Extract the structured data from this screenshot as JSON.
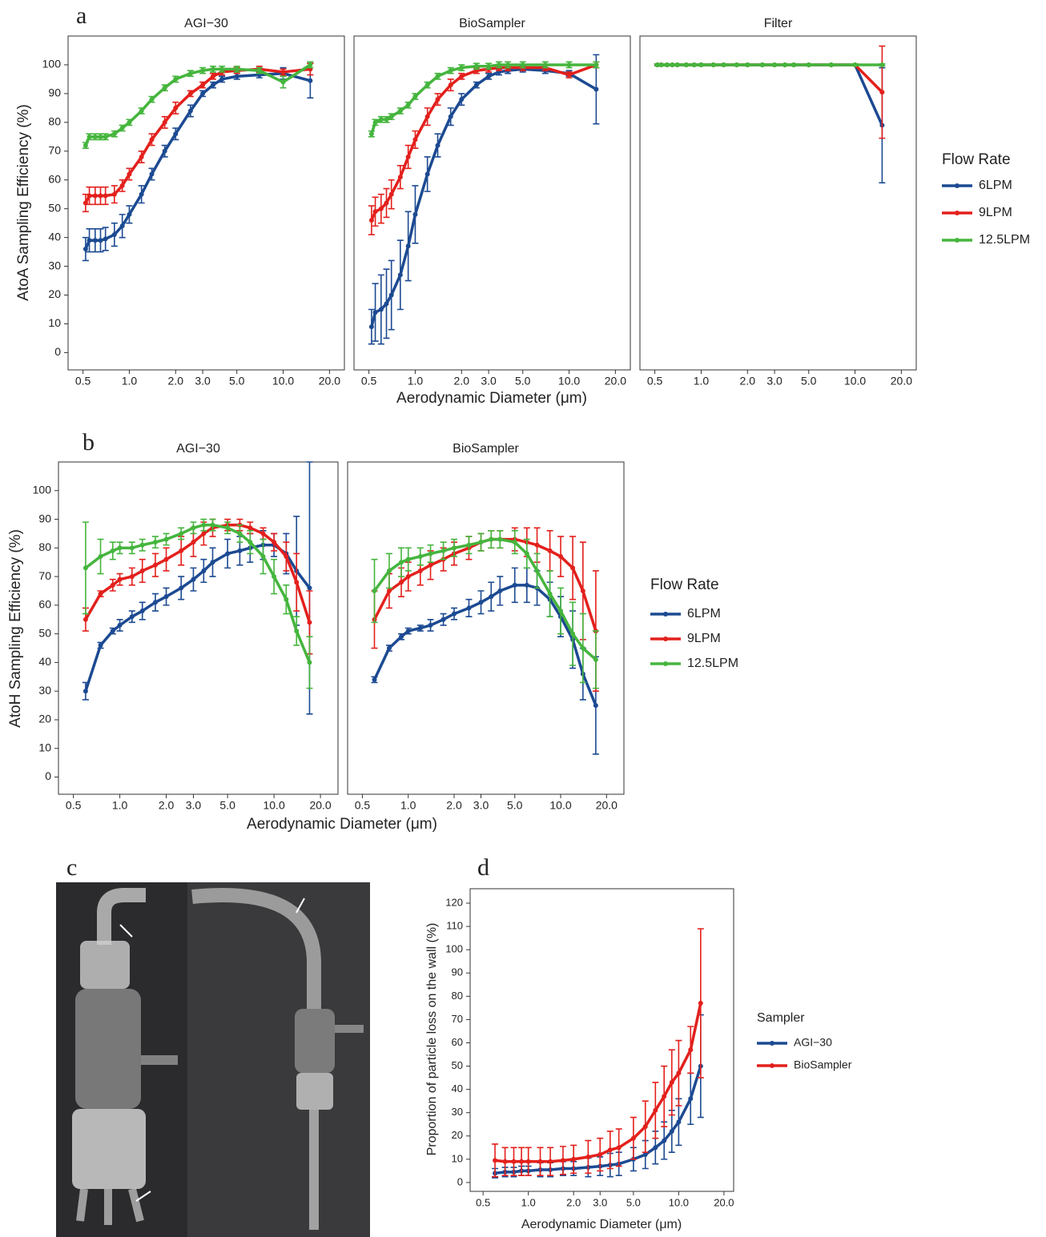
{
  "photo_panel": {
    "label": "c"
  },
  "chart_data": [
    {
      "type": "line",
      "panel_label": "a",
      "x_label": "Aerodynamic Diameter (μm)",
      "y_label": "AtoA Sampling Efficiency (%)",
      "legend_title": "Flow Rate",
      "x_log": true,
      "xlim": [
        0.4,
        25
      ],
      "xticks": [
        0.5,
        {
          "value": 1,
          "label": "1.0"
        },
        {
          "value": 2,
          "label": "2.0"
        },
        {
          "value": 3,
          "label": "3.0"
        },
        {
          "value": 5,
          "label": "5.0"
        },
        {
          "value": 10,
          "label": "10.0"
        },
        {
          "value": 20,
          "label": "20.0"
        }
      ],
      "ylim": [
        -6,
        110
      ],
      "yticks": [
        0,
        10,
        20,
        30,
        40,
        50,
        60,
        70,
        80,
        90,
        100
      ],
      "series": [
        {
          "name": "6LPM",
          "color": "#1c4a92"
        },
        {
          "name": "9LPM",
          "color": "#e3201c"
        },
        {
          "name": "12.5LPM",
          "color": "#45b53d"
        }
      ],
      "facets": [
        {
          "title": "AGI−30",
          "x": [
            0.52,
            0.55,
            0.6,
            0.65,
            0.7,
            0.8,
            0.9,
            1.0,
            1.2,
            1.4,
            1.7,
            2.0,
            2.5,
            3.0,
            3.5,
            4.0,
            5.0,
            7.0,
            10.0,
            15.0
          ],
          "values": [
            [
              36,
              39,
              39,
              39,
              39.5,
              41,
              44,
              48,
              55,
              62,
              70,
              76,
              84,
              90,
              93,
              95,
              96,
              96.5,
              97,
              94.5
            ],
            [
              52,
              54.5,
              54.5,
              54.5,
              54.5,
              55,
              58,
              62,
              68,
              74,
              80,
              85,
              90,
              93,
              96,
              97.5,
              98,
              98.5,
              97.5,
              98.5
            ],
            [
              72,
              75,
              75,
              75,
              75,
              76,
              78,
              80,
              84,
              88,
              92,
              95,
              97,
              98,
              98.5,
              98.5,
              98.5,
              98,
              94,
              100
            ]
          ],
          "errors": [
            [
              4,
              4,
              4,
              4,
              4,
              4,
              4,
              3,
              3,
              2,
              2,
              2,
              2,
              1,
              1,
              1,
              1,
              1,
              2,
              6
            ],
            [
              3,
              3,
              3,
              3,
              3,
              3,
              2,
              2,
              2,
              2,
              2,
              2,
              1,
              1,
              1,
              1,
              1,
              1,
              1,
              2
            ],
            [
              1,
              1,
              1,
              1,
              1,
              1,
              1,
              1,
              1,
              1,
              1,
              1,
              1,
              1,
              1,
              1,
              1,
              1,
              2,
              1
            ]
          ]
        },
        {
          "title": "BioSampler",
          "x": [
            0.52,
            0.55,
            0.6,
            0.65,
            0.7,
            0.8,
            0.9,
            1.0,
            1.2,
            1.4,
            1.7,
            2.0,
            2.5,
            3.0,
            3.5,
            4.0,
            5.0,
            7.0,
            10.0,
            15.0
          ],
          "values": [
            [
              9,
              14,
              15,
              17,
              20,
              27,
              37,
              48,
              62,
              72,
              82,
              88,
              93,
              96,
              97.5,
              98,
              98.5,
              98,
              97,
              91.5
            ],
            [
              46,
              49,
              50,
              52,
              55,
              61,
              68,
              74,
              82,
              88,
              93,
              96,
              98,
              98.5,
              99,
              99,
              99,
              99,
              96.5,
              100
            ],
            [
              76,
              80,
              81,
              81,
              82,
              84,
              86,
              89,
              93,
              96,
              98,
              99,
              99.5,
              99.5,
              100,
              100,
              100,
              100,
              100,
              100
            ]
          ],
          "errors": [
            [
              6,
              10,
              12,
              12,
              12,
              12,
              12,
              10,
              6,
              4,
              3,
              2,
              1,
              1,
              1,
              1,
              1,
              1,
              1,
              12
            ],
            [
              5,
              5,
              5,
              5,
              5,
              4,
              4,
              3,
              3,
              2,
              2,
              1,
              1,
              1,
              1,
              1,
              1,
              1,
              1,
              1
            ],
            [
              1,
              1,
              1,
              1,
              1,
              1,
              1,
              1,
              1,
              1,
              1,
              1,
              1,
              1,
              1,
              1,
              1,
              1,
              1,
              1
            ]
          ]
        },
        {
          "title": "Filter",
          "x": [
            0.52,
            0.55,
            0.6,
            0.65,
            0.7,
            0.8,
            0.9,
            1.0,
            1.2,
            1.4,
            1.7,
            2.0,
            2.5,
            3.0,
            3.5,
            4.0,
            5.0,
            7.0,
            10.0,
            15.0
          ],
          "values": [
            [
              100,
              100,
              100,
              100,
              100,
              100,
              100,
              100,
              100,
              100,
              100,
              100,
              100,
              100,
              100,
              100,
              100,
              100,
              100,
              79
            ],
            [
              100,
              100,
              100,
              100,
              100,
              100,
              100,
              100,
              100,
              100,
              100,
              100,
              100,
              100,
              100,
              100,
              100,
              100,
              100,
              90.5
            ],
            [
              100,
              100,
              100,
              100,
              100,
              100,
              100,
              100,
              100,
              100,
              100,
              100,
              100,
              100,
              100,
              100,
              100,
              100,
              100,
              100
            ]
          ],
          "errors": [
            [
              0.3,
              0.3,
              0.3,
              0.3,
              0.3,
              0.3,
              0.3,
              0.3,
              0.3,
              0.3,
              0.3,
              0.3,
              0.3,
              0.3,
              0.3,
              0.3,
              0.3,
              0.3,
              0.3,
              20
            ],
            [
              0.3,
              0.3,
              0.3,
              0.3,
              0.3,
              0.3,
              0.3,
              0.3,
              0.3,
              0.3,
              0.3,
              0.3,
              0.3,
              0.3,
              0.3,
              0.3,
              0.3,
              0.3,
              0.3,
              16
            ],
            [
              0.3,
              0.3,
              0.3,
              0.3,
              0.3,
              0.3,
              0.3,
              0.3,
              0.3,
              0.3,
              0.3,
              0.3,
              0.3,
              0.3,
              0.3,
              0.3,
              0.3,
              0.3,
              0.3,
              0.3
            ]
          ]
        }
      ]
    },
    {
      "type": "line",
      "panel_label": "b",
      "x_label": "Aerodynamic Diameter (μm)",
      "y_label": "AtoH Sampling Efficiency (%)",
      "legend_title": "Flow Rate",
      "x_log": true,
      "xlim": [
        0.4,
        26
      ],
      "xticks": [
        0.5,
        {
          "value": 1,
          "label": "1.0"
        },
        {
          "value": 2,
          "label": "2.0"
        },
        {
          "value": 3,
          "label": "3.0"
        },
        {
          "value": 5,
          "label": "5.0"
        },
        {
          "value": 10,
          "label": "10.0"
        },
        {
          "value": 20,
          "label": "20.0"
        }
      ],
      "ylim": [
        -6,
        110
      ],
      "yticks": [
        0,
        10,
        20,
        30,
        40,
        50,
        60,
        70,
        80,
        90,
        100
      ],
      "series": [
        {
          "name": "6LPM",
          "color": "#1c4a92"
        },
        {
          "name": "9LPM",
          "color": "#e3201c"
        },
        {
          "name": "12.5LPM",
          "color": "#45b53d"
        }
      ],
      "facets": [
        {
          "title": "AGI−30",
          "x": [
            0.6,
            0.75,
            0.9,
            1.0,
            1.2,
            1.4,
            1.7,
            2.0,
            2.5,
            3.0,
            3.5,
            4.0,
            5.0,
            6.0,
            7.0,
            8.5,
            10.0,
            12.0,
            14.0,
            17.0
          ],
          "values": [
            [
              30,
              46,
              51,
              53,
              56,
              58,
              61,
              63,
              66,
              69,
              72,
              75,
              78,
              79,
              80,
              81,
              81,
              78,
              72,
              66
            ],
            [
              55,
              64,
              67,
              69,
              70,
              72,
              74,
              76,
              79,
              82,
              85,
              87,
              88,
              88,
              87,
              85,
              82,
              77,
              68,
              54
            ],
            [
              73,
              77,
              79,
              80,
              80,
              81,
              82,
              83,
              85,
              87,
              88,
              88,
              87,
              85,
              82,
              77,
              70,
              62,
              51,
              40
            ]
          ],
          "errors": [
            [
              3,
              1,
              1,
              2,
              2,
              3,
              3,
              3,
              4,
              4,
              4,
              5,
              5,
              5,
              5,
              5,
              4,
              7,
              19,
              44
            ],
            [
              4,
              1,
              2,
              2,
              3,
              4,
              4,
              4,
              5,
              5,
              4,
              3,
              2,
              2,
              2,
              2,
              3,
              5,
              10,
              11
            ],
            [
              16,
              6,
              3,
              2,
              2,
              2,
              2,
              2,
              2,
              2,
              2,
              2,
              2,
              3,
              4,
              6,
              6,
              5,
              5,
              9
            ]
          ]
        },
        {
          "title": "BioSampler",
          "x": [
            0.6,
            0.75,
            0.9,
            1.0,
            1.2,
            1.4,
            1.7,
            2.0,
            2.5,
            3.0,
            3.5,
            4.0,
            5.0,
            6.0,
            7.0,
            8.5,
            10.0,
            12.0,
            14.0,
            17.0
          ],
          "values": [
            [
              34,
              45,
              49,
              51,
              52,
              53,
              55,
              57,
              59,
              61,
              63,
              65,
              67,
              67,
              66,
              62,
              56,
              48,
              36,
              25
            ],
            [
              55,
              65,
              68,
              70,
              72,
              74,
              76,
              78,
              80,
              82,
              83,
              83,
              83,
              82,
              81,
              79,
              77,
              73,
              65,
              51
            ],
            [
              65,
              72,
              75,
              76,
              77,
              78,
              79,
              80,
              81,
              82,
              83,
              83,
              82,
              78,
              72,
              64,
              58,
              50,
              45,
              41
            ]
          ],
          "errors": [
            [
              1,
              1,
              1,
              1,
              1,
              2,
              2,
              2,
              3,
              4,
              5,
              5,
              6,
              6,
              6,
              6,
              7,
              10,
              9,
              17
            ],
            [
              10,
              6,
              5,
              5,
              5,
              5,
              4,
              4,
              4,
              3,
              3,
              3,
              4,
              5,
              6,
              7,
              7,
              11,
              17,
              21
            ],
            [
              11,
              6,
              5,
              4,
              3,
              3,
              3,
              3,
              3,
              3,
              3,
              3,
              4,
              5,
              6,
              8,
              8,
              11,
              12,
              10
            ]
          ]
        }
      ]
    },
    {
      "type": "line",
      "panel_label": "d",
      "x_label": "Aerodynamic Diameter (μm)",
      "y_label": "Proportion of particle loss on the wall (%)",
      "legend_title": "Sampler",
      "x_log": true,
      "xlim": [
        0.41,
        23.2
      ],
      "xticks": [
        0.5,
        {
          "value": 1,
          "label": "1.0"
        },
        {
          "value": 2,
          "label": "2.0"
        },
        {
          "value": 3,
          "label": "3.0"
        },
        {
          "value": 5,
          "label": "5.0"
        },
        {
          "value": 10,
          "label": "10.0"
        },
        {
          "value": 20,
          "label": "20.0"
        }
      ],
      "ylim": [
        -3.8,
        126.2
      ],
      "yticks": [
        0,
        10,
        20,
        30,
        40,
        50,
        60,
        70,
        80,
        90,
        100,
        110,
        120
      ],
      "series": [
        {
          "name": "AGI−30",
          "color": "#1c4a92"
        },
        {
          "name": "BioSampler",
          "color": "#e3201c"
        }
      ],
      "facets": [
        {
          "x": [
            0.6,
            0.7,
            0.8,
            0.9,
            1.0,
            1.2,
            1.4,
            1.7,
            2.0,
            2.5,
            3.0,
            3.5,
            4.0,
            5.0,
            6.0,
            7.0,
            8.0,
            9.0,
            10.0,
            12.0,
            14.0
          ],
          "values": [
            [
              4,
              4.5,
              4.5,
              5,
              5,
              5.5,
              5.5,
              6,
              6,
              6.5,
              7,
              7.5,
              8,
              10,
              12,
              15,
              18,
              22,
              26,
              36,
              50
            ],
            [
              9.5,
              9,
              9,
              9,
              9,
              9,
              9,
              9.5,
              10,
              11,
              12,
              14,
              15,
              19,
              24,
              31,
              37,
              43,
              47,
              57,
              77
            ]
          ],
          "errors": [
            [
              2,
              2,
              2,
              2,
              2,
              3,
              3,
              3,
              3,
              4,
              4,
              5,
              5,
              5,
              6,
              7,
              8,
              9,
              10,
              11,
              22
            ],
            [
              7,
              6,
              6,
              6,
              6,
              6,
              6,
              6,
              6,
              7,
              7,
              8,
              8,
              9,
              11,
              12,
              13,
              14,
              14,
              10,
              32
            ]
          ]
        }
      ]
    }
  ]
}
